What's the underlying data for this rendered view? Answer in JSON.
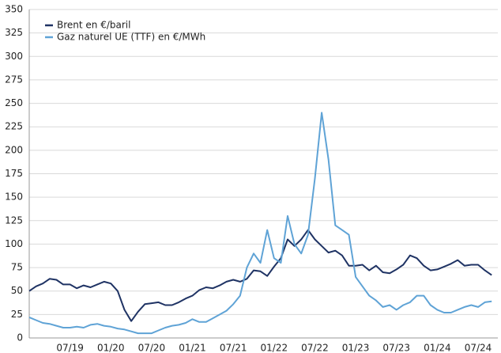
{
  "chart_data": {
    "type": "line",
    "categories": [
      null,
      null,
      null,
      null,
      null,
      null,
      "07/19",
      null,
      null,
      null,
      null,
      null,
      "01/20",
      null,
      null,
      null,
      null,
      null,
      "07/20",
      null,
      null,
      null,
      null,
      null,
      "01/21",
      null,
      null,
      null,
      null,
      null,
      "07/21",
      null,
      null,
      null,
      null,
      null,
      "01/22",
      null,
      null,
      null,
      null,
      null,
      "07/22",
      null,
      null,
      null,
      null,
      null,
      "01/23",
      null,
      null,
      null,
      null,
      null,
      "07/23",
      null,
      null,
      null,
      null,
      null,
      "01/24",
      null,
      null,
      null,
      null,
      null,
      "07/24",
      null,
      null
    ],
    "series": [
      {
        "name": "Brent en €/baril",
        "color": "#1f3364",
        "values": [
          50,
          55,
          58,
          63,
          62,
          57,
          57,
          53,
          56,
          54,
          57,
          60,
          58,
          50,
          30,
          18,
          28,
          36,
          37,
          38,
          35,
          35,
          38,
          42,
          45,
          51,
          54,
          53,
          56,
          60,
          62,
          60,
          63,
          72,
          71,
          66,
          76,
          85,
          105,
          98,
          105,
          115,
          105,
          98,
          91,
          93,
          88,
          77,
          77,
          78,
          72,
          77,
          70,
          69,
          73,
          78,
          88,
          85,
          77,
          72,
          73,
          76,
          79,
          83,
          77,
          78,
          78,
          72,
          67
        ]
      },
      {
        "name": "Gaz naturel UE (TTF) en €/MWh",
        "color": "#5fa3d6",
        "values": [
          22,
          19,
          16,
          15,
          13,
          11,
          11,
          12,
          11,
          14,
          15,
          13,
          12,
          10,
          9,
          7,
          5,
          5,
          5,
          8,
          11,
          13,
          14,
          16,
          20,
          17,
          17,
          21,
          25,
          29,
          36,
          45,
          75,
          90,
          80,
          115,
          85,
          80,
          130,
          100,
          90,
          110,
          170,
          240,
          190,
          120,
          115,
          110,
          65,
          55,
          45,
          40,
          33,
          35,
          30,
          35,
          38,
          45,
          45,
          35,
          30,
          27,
          27,
          30,
          33,
          35,
          33,
          38,
          39
        ]
      }
    ],
    "ylim": [
      0,
      350
    ],
    "yticks": [
      0,
      25,
      50,
      75,
      100,
      125,
      150,
      175,
      200,
      225,
      250,
      275,
      300,
      325,
      350
    ],
    "grid": true,
    "legend": "top-left"
  }
}
